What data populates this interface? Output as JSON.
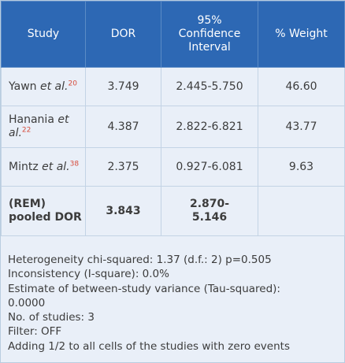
{
  "table": {
    "headers": {
      "study": "Study",
      "dor": "DOR",
      "ci_line1": "95%",
      "ci_line2": "Confidence",
      "ci_line3": "Interval",
      "weight": "% Weight"
    },
    "rows": [
      {
        "author": "Yawn",
        "etal": "et al.",
        "ref": "20",
        "dor": "3.749",
        "ci": "2.445-5.750",
        "weight": "46.60"
      },
      {
        "author": "Hanania",
        "etal": "et al.",
        "ref": "22",
        "dor": "4.387",
        "ci": "2.822-6.821",
        "weight": "43.77"
      },
      {
        "author": "Mintz",
        "etal": "et al.",
        "ref": "38",
        "dor": "2.375",
        "ci": "0.927-6.081",
        "weight": "9.63"
      }
    ],
    "pooled": {
      "label_line1": "(REM)",
      "label_line2": "pooled DOR",
      "dor": "3.843",
      "ci_line1": "2.870-",
      "ci_line2": "5.146",
      "weight": ""
    }
  },
  "notes": [
    "Heterogeneity chi-squared: 1.37 (d.f.: 2) p=0.505",
    "Inconsistency (I-square): 0.0%",
    "Estimate of between-study variance (Tau-squared):",
    "0.0000",
    "No. of studies: 3",
    "Filter: OFF",
    "Adding 1/2 to all cells of the studies with zero events"
  ],
  "colors": {
    "header_bg": "#2d68b4",
    "body_bg": "#e9eff8",
    "border": "#c3d3e5",
    "reference_red": "#d64b3b"
  }
}
